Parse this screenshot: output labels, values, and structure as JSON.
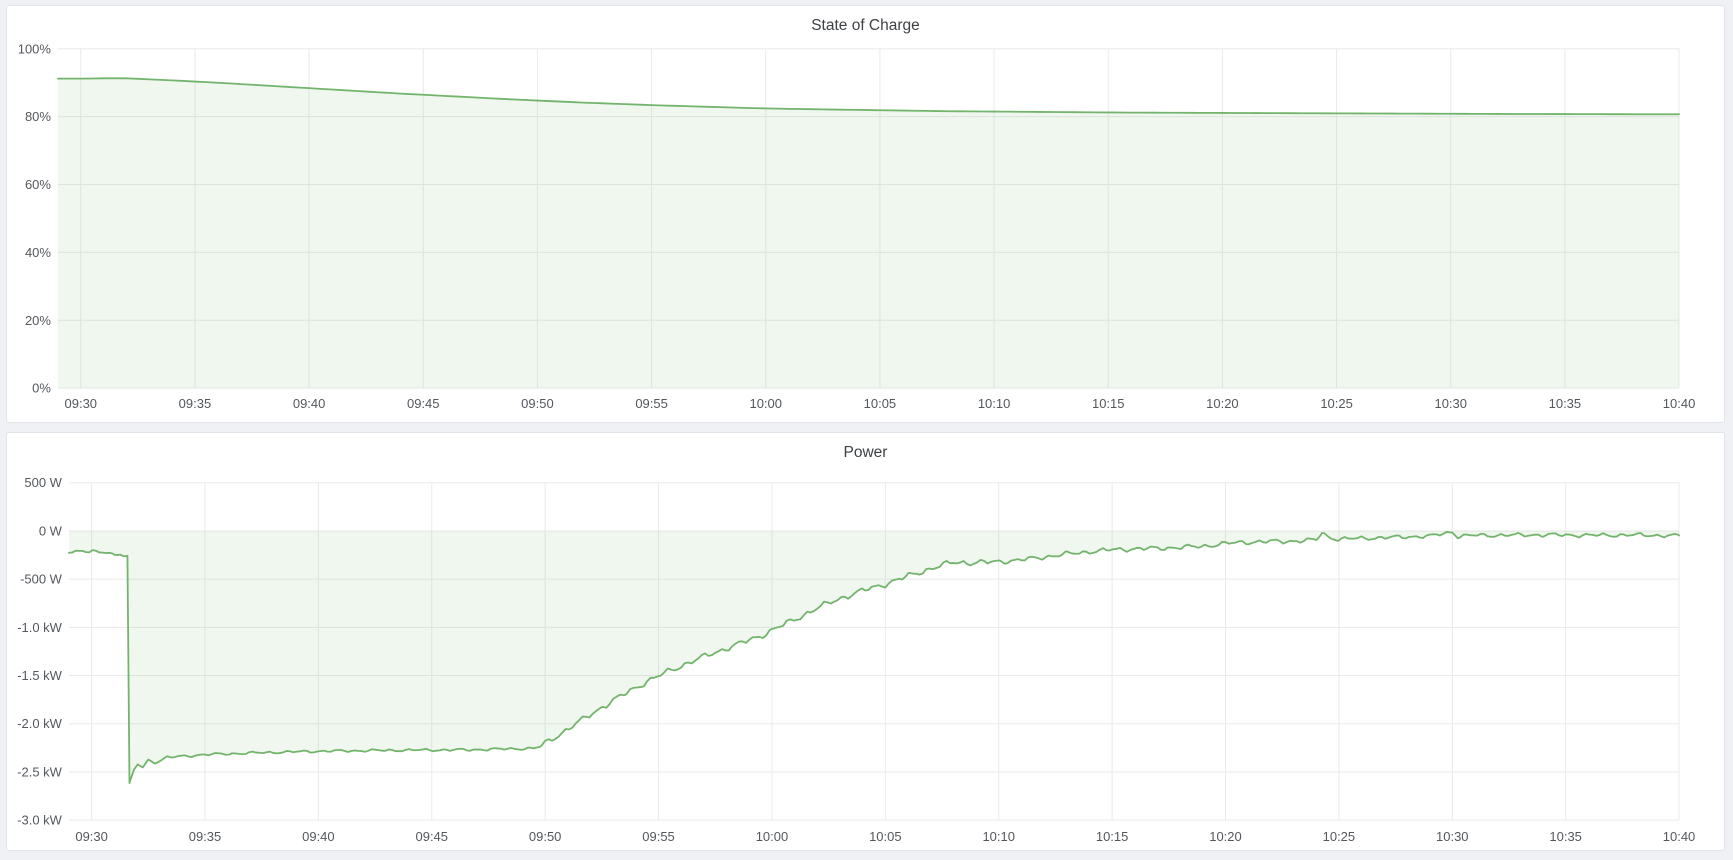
{
  "page": {
    "background": "#eff1f5",
    "panel_background": "#ffffff",
    "panel_border": "#e1e4ea"
  },
  "colors": {
    "line": "#73b46c",
    "fill": "rgba(115,180,108,0.11)",
    "grid": "#e9eaec",
    "axis_text": "#54575c",
    "title_text": "#3e4146"
  },
  "chart_data": [
    {
      "type": "area",
      "title": "State of Charge",
      "unit": "percent",
      "legend_position": "none",
      "grid": true,
      "x_range_minutes": [
        -1,
        70
      ],
      "x_tick_minutes": [
        0,
        5,
        10,
        15,
        20,
        25,
        30,
        35,
        40,
        45,
        50,
        55,
        60,
        65,
        70
      ],
      "x_tick_labels": [
        "09:30",
        "09:35",
        "09:40",
        "09:45",
        "09:50",
        "09:55",
        "10:00",
        "10:05",
        "10:10",
        "10:15",
        "10:20",
        "10:25",
        "10:30",
        "10:35",
        "10:40"
      ],
      "ylim": [
        0,
        100
      ],
      "y_tick_values": [
        100,
        80,
        60,
        40,
        20,
        0
      ],
      "y_tick_labels": [
        "100%",
        "80%",
        "60%",
        "40%",
        "20%",
        "0%"
      ],
      "sample_step_min": 0.5,
      "series": [
        {
          "name": "State of Charge",
          "noise": [],
          "points": [
            [
              -1,
              91.2
            ],
            [
              0,
              91.2
            ],
            [
              1,
              91.3
            ],
            [
              2,
              91.3
            ],
            [
              3,
              91.0
            ],
            [
              4,
              90.7
            ],
            [
              5,
              90.35
            ],
            [
              6,
              90.0
            ],
            [
              7,
              89.6
            ],
            [
              8,
              89.2
            ],
            [
              9,
              88.8
            ],
            [
              10,
              88.4
            ],
            [
              11,
              88.0
            ],
            [
              12,
              87.6
            ],
            [
              13,
              87.2
            ],
            [
              14,
              86.8
            ],
            [
              15,
              86.45
            ],
            [
              16,
              86.1
            ],
            [
              17,
              85.75
            ],
            [
              18,
              85.4
            ],
            [
              19,
              85.05
            ],
            [
              20,
              84.75
            ],
            [
              21,
              84.45
            ],
            [
              22,
              84.15
            ],
            [
              23,
              83.9
            ],
            [
              24,
              83.65
            ],
            [
              25,
              83.4
            ],
            [
              26,
              83.2
            ],
            [
              27,
              83.0
            ],
            [
              28,
              82.8
            ],
            [
              29,
              82.6
            ],
            [
              30,
              82.45
            ],
            [
              31,
              82.3
            ],
            [
              32,
              82.2
            ],
            [
              33,
              82.1
            ],
            [
              34,
              82.0
            ],
            [
              35,
              81.9
            ],
            [
              36,
              81.8
            ],
            [
              37,
              81.7
            ],
            [
              38,
              81.6
            ],
            [
              39,
              81.55
            ],
            [
              40,
              81.5
            ],
            [
              42,
              81.4
            ],
            [
              44,
              81.3
            ],
            [
              46,
              81.2
            ],
            [
              48,
              81.15
            ],
            [
              50,
              81.1
            ],
            [
              52,
              81.05
            ],
            [
              54,
              81.0
            ],
            [
              56,
              80.95
            ],
            [
              58,
              80.9
            ],
            [
              60,
              80.85
            ],
            [
              62,
              80.8
            ],
            [
              64,
              80.78
            ],
            [
              66,
              80.75
            ],
            [
              68,
              80.72
            ],
            [
              70,
              80.7
            ]
          ]
        }
      ]
    },
    {
      "type": "area",
      "title": "Power",
      "unit": "watt",
      "legend_position": "none",
      "grid": true,
      "x_range_minutes": [
        -1,
        70
      ],
      "x_tick_minutes": [
        0,
        5,
        10,
        15,
        20,
        25,
        30,
        35,
        40,
        45,
        50,
        55,
        60,
        65,
        70
      ],
      "x_tick_labels": [
        "09:30",
        "09:35",
        "09:40",
        "09:45",
        "09:50",
        "09:55",
        "10:00",
        "10:05",
        "10:10",
        "10:15",
        "10:20",
        "10:25",
        "10:30",
        "10:35",
        "10:40"
      ],
      "ylim": [
        -3000,
        500
      ],
      "y_tick_values": [
        500,
        0,
        -500,
        -1000,
        -1500,
        -2000,
        -2500,
        -3000
      ],
      "y_tick_labels": [
        "500 W",
        "0 W",
        "-500 W",
        "-1.0 kW",
        "-1.5 kW",
        "-2.0 kW",
        "-2.5 kW",
        "-3.0 kW"
      ],
      "sample_step_min": 0.15,
      "series": [
        {
          "name": "Power",
          "noise": [
            [
              -1,
              1.58,
              26
            ],
            [
              1.67,
              19.5,
              17
            ],
            [
              19.75,
              40,
              38
            ],
            [
              40,
              55,
              30
            ],
            [
              55,
              70,
              26
            ]
          ],
          "points": [
            [
              -1,
              -205
            ],
            [
              0,
              -215
            ],
            [
              0.33,
              -230
            ],
            [
              0.67,
              -210
            ],
            [
              1,
              -250
            ],
            [
              1.25,
              -235
            ],
            [
              1.58,
              -265
            ],
            [
              1.67,
              -2630
            ],
            [
              1.87,
              -2480
            ],
            [
              2.03,
              -2420
            ],
            [
              2.25,
              -2450
            ],
            [
              2.5,
              -2380
            ],
            [
              2.83,
              -2400
            ],
            [
              3.33,
              -2350
            ],
            [
              5,
              -2320
            ],
            [
              7.5,
              -2300
            ],
            [
              10,
              -2285
            ],
            [
              13.33,
              -2275
            ],
            [
              16.67,
              -2270
            ],
            [
              19.5,
              -2255
            ],
            [
              19.75,
              -2240
            ],
            [
              20.5,
              -2130
            ],
            [
              21.5,
              -1980
            ],
            [
              22.5,
              -1830
            ],
            [
              23.5,
              -1690
            ],
            [
              24.5,
              -1560
            ],
            [
              25.5,
              -1450
            ],
            [
              26.5,
              -1350
            ],
            [
              27.5,
              -1260
            ],
            [
              28.5,
              -1175
            ],
            [
              29.5,
              -1090
            ],
            [
              30,
              -1030
            ],
            [
              31,
              -920
            ],
            [
              32,
              -800
            ],
            [
              33,
              -700
            ],
            [
              34,
              -620
            ],
            [
              35,
              -550
            ],
            [
              36,
              -470
            ],
            [
              37,
              -390
            ],
            [
              38,
              -325
            ],
            [
              39,
              -330
            ],
            [
              40,
              -320
            ],
            [
              41,
              -300
            ],
            [
              42,
              -270
            ],
            [
              43,
              -240
            ],
            [
              44,
              -215
            ],
            [
              45,
              -195
            ],
            [
              46,
              -185
            ],
            [
              47,
              -180
            ],
            [
              48,
              -170
            ],
            [
              49,
              -160
            ],
            [
              50,
              -130
            ],
            [
              51,
              -115
            ],
            [
              52,
              -110
            ],
            [
              53,
              -105
            ],
            [
              54,
              -95
            ],
            [
              54.25,
              -15
            ],
            [
              54.5,
              -60
            ],
            [
              55,
              -85
            ],
            [
              56,
              -75
            ],
            [
              57,
              -70
            ],
            [
              58,
              -60
            ],
            [
              59,
              -55
            ],
            [
              60,
              -10
            ],
            [
              60.25,
              -55
            ],
            [
              61,
              -45
            ],
            [
              62,
              -45
            ],
            [
              64,
              -40
            ],
            [
              66,
              -45
            ],
            [
              68,
              -42
            ],
            [
              70,
              -50
            ]
          ]
        }
      ]
    }
  ]
}
